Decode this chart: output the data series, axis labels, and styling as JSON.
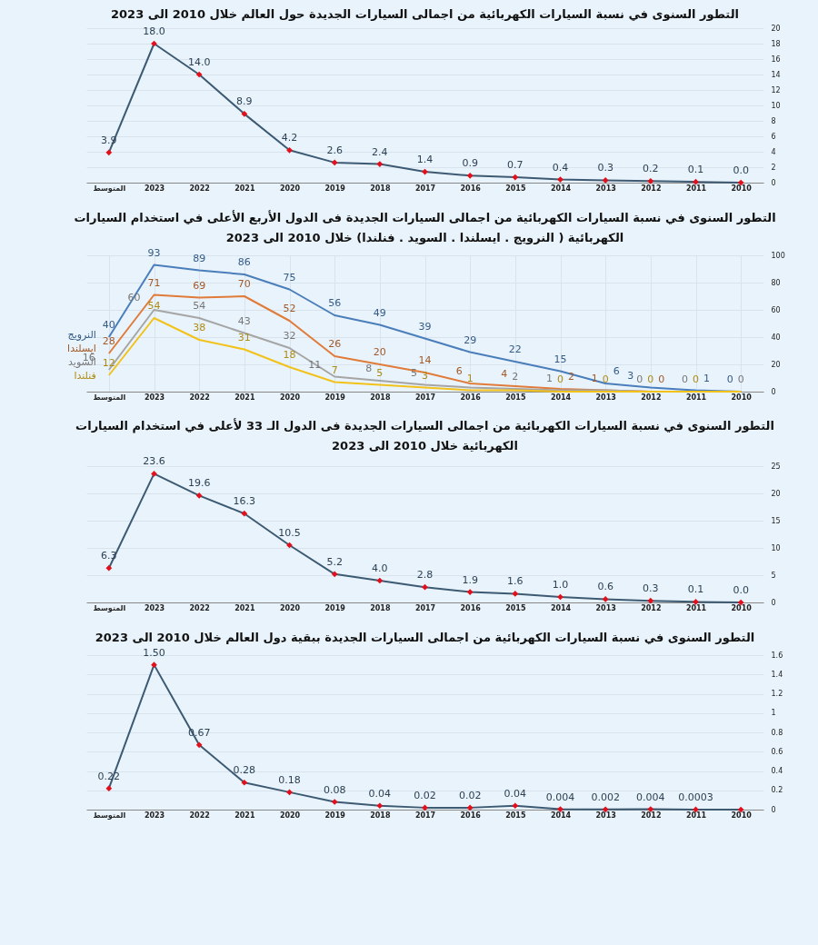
{
  "chart_data": [
    {
      "type": "line",
      "title": "التطور السنوى في نسبة السيارات الكهربائية من اجمالى السيارات الجديدة حول العالم خلال 2010 الى 2023",
      "categories": [
        "المتوسط",
        "2023",
        "2022",
        "2021",
        "2020",
        "2019",
        "2018",
        "2017",
        "2016",
        "2015",
        "2014",
        "2013",
        "2012",
        "2011",
        "2010"
      ],
      "series": [
        {
          "color": "#3d5a73",
          "colors": [
            "#e3101b",
            "#e3101b",
            "#e3101b",
            "#e3101b",
            "#e3101b",
            "#e3101b",
            "#e3101b",
            "#e3101b",
            "#e3101b",
            "#e3101b",
            "#e3101b",
            "#e3101b",
            "#e3101b",
            "#e3101b",
            "#e3101b"
          ],
          "values": [
            3.9,
            18.0,
            14.0,
            8.9,
            4.2,
            2.6,
            2.4,
            1.4,
            0.9,
            0.7,
            0.4,
            0.3,
            0.2,
            0.1,
            0.0
          ],
          "value_labels": [
            "3.9",
            "18.0",
            "14.0",
            "8.9",
            "4.2",
            "2.6",
            "2.4",
            "1.4",
            "0.9",
            "0.7",
            "0.4",
            "0.3",
            "0.2",
            "0.1",
            "0.0"
          ]
        }
      ],
      "ylim": [
        0,
        20
      ],
      "yticks": [
        0,
        2,
        4,
        6,
        8,
        10,
        12,
        14,
        16,
        18,
        20
      ],
      "grid": "y",
      "marker": "diamond",
      "line_style": "solid"
    },
    {
      "type": "line",
      "title": "التطور السنوى في نسبة السيارات الكهربائية من اجمالى السيارات الجديدة فى الدول الأربع الأعلى في استخدام السيارات\nالكهربائية ( النرويج . ايسلندا . السويد . فنلندا) خلال 2010 الى 2023",
      "categories": [
        "المتوسط",
        "2023",
        "2022",
        "2021",
        "2020",
        "2019",
        "2018",
        "2017",
        "2016",
        "2015",
        "2014",
        "2013",
        "2012",
        "2011",
        "2010"
      ],
      "series": [
        {
          "name": "النرويج",
          "color": "#4a7ebb",
          "values": [
            40,
            93,
            89,
            86,
            75,
            56,
            49,
            39,
            29,
            22,
            15,
            6,
            3,
            1,
            0
          ],
          "value_labels": [
            "40",
            "93",
            "89",
            "86",
            "75",
            "56",
            "49",
            "39",
            "29",
            "22",
            "15",
            "6",
            "3",
            "1",
            "0"
          ]
        },
        {
          "name": "ايسلندا",
          "color": "#e07b39",
          "values": [
            28,
            71,
            69,
            70,
            52,
            26,
            20,
            14,
            6,
            4,
            2,
            1,
            0,
            0,
            0
          ],
          "value_labels": [
            "28",
            "71",
            "69",
            "70",
            "52",
            "26",
            "20",
            "14",
            "6",
            "4",
            "2",
            "1",
            "0",
            null,
            null
          ]
        },
        {
          "name": "السويد",
          "color": "#a5a5a5",
          "values": [
            16,
            60,
            54,
            43,
            32,
            11,
            8,
            5,
            3,
            2,
            1,
            1,
            0,
            0,
            0
          ],
          "value_labels": [
            "16",
            "60",
            "54",
            "43",
            "32",
            "11",
            "8",
            "5",
            null,
            "2",
            "1",
            null,
            "0",
            "0",
            "0"
          ]
        },
        {
          "name": "فنلندا",
          "color": "#f2c21b",
          "values": [
            12,
            54,
            38,
            31,
            18,
            7,
            5,
            3,
            1,
            1,
            0,
            0,
            0,
            0,
            0
          ],
          "value_labels": [
            "12",
            "54",
            "38",
            "31",
            "18",
            "7",
            "5",
            "3",
            "1",
            null,
            "0",
            "0",
            "0",
            "0",
            null
          ]
        }
      ],
      "ylim": [
        0,
        100
      ],
      "yticks": [
        0,
        20,
        40,
        60,
        80,
        100
      ],
      "grid": true,
      "marker": "none",
      "line_style": "solid"
    },
    {
      "type": "line",
      "title": "التطور السنوى في نسبة السيارات الكهربائية من اجمالى السيارات الجديدة فى الدول الـ 33 لأعلى في استخدام السيارات\nالكهربائية خلال 2010 الى 2023",
      "categories": [
        "المتوسط",
        "2023",
        "2022",
        "2021",
        "2020",
        "2019",
        "2018",
        "2017",
        "2016",
        "2015",
        "2014",
        "2013",
        "2012",
        "2011",
        "2010"
      ],
      "series": [
        {
          "color": "#3d5a73",
          "colors": [
            "#e3101b",
            "#e3101b",
            "#e3101b",
            "#e3101b",
            "#e3101b",
            "#e3101b",
            "#e3101b",
            "#e3101b",
            "#e3101b",
            "#e3101b",
            "#e3101b",
            "#e3101b",
            "#e3101b",
            "#e3101b",
            "#e3101b"
          ],
          "values": [
            6.3,
            23.6,
            19.6,
            16.3,
            10.5,
            5.2,
            4.0,
            2.8,
            1.9,
            1.6,
            1.0,
            0.6,
            0.3,
            0.1,
            0.0
          ],
          "value_labels": [
            "6.3",
            "23.6",
            "19.6",
            "16.3",
            "10.5",
            "5.2",
            "4.0",
            "2.8",
            "1.9",
            "1.6",
            "1.0",
            "0.6",
            "0.3",
            "0.1",
            "0.0"
          ]
        }
      ],
      "ylim": [
        0,
        25
      ],
      "yticks": [
        0,
        5,
        10,
        15,
        20,
        25
      ],
      "grid": "y",
      "marker": "diamond",
      "line_style": "solid"
    },
    {
      "type": "line",
      "title": "التطور السنوى في نسبة السيارات الكهربائية من اجمالى السيارات الجديدة ببقية دول العالم خلال 2010 الى 2023",
      "categories": [
        "المتوسط",
        "2023",
        "2022",
        "2021",
        "2020",
        "2019",
        "2018",
        "2017",
        "2016",
        "2015",
        "2014",
        "2013",
        "2012",
        "2011",
        "2010"
      ],
      "series": [
        {
          "color": "#3d5a73",
          "colors": [
            "#e3101b",
            "#e3101b",
            "#e3101b",
            "#e3101b",
            "#e3101b",
            "#e3101b",
            "#e3101b",
            "#e3101b",
            "#e3101b",
            "#e3101b",
            "#e3101b",
            "#e3101b",
            "#e3101b",
            "#e3101b",
            "#e3101b"
          ],
          "values": [
            0.22,
            1.5,
            0.67,
            0.28,
            0.18,
            0.08,
            0.04,
            0.02,
            0.02,
            0.04,
            0.004,
            0.002,
            0.004,
            0.0003,
            0
          ],
          "value_labels": [
            "0.22",
            "1.50",
            "0.67",
            "0.28",
            "0.18",
            "0.08",
            "0.04",
            "0.02",
            "0.02",
            "0.04",
            "0.004",
            "0.002",
            "0.004",
            "0.0003",
            null
          ]
        }
      ],
      "ylim": [
        0,
        1.6
      ],
      "yticks": [
        0,
        0.2,
        0.4,
        0.6,
        0.8,
        1,
        1.2,
        1.4,
        1.6
      ],
      "grid": "y",
      "marker": "diamond",
      "line_style": "solid"
    }
  ]
}
